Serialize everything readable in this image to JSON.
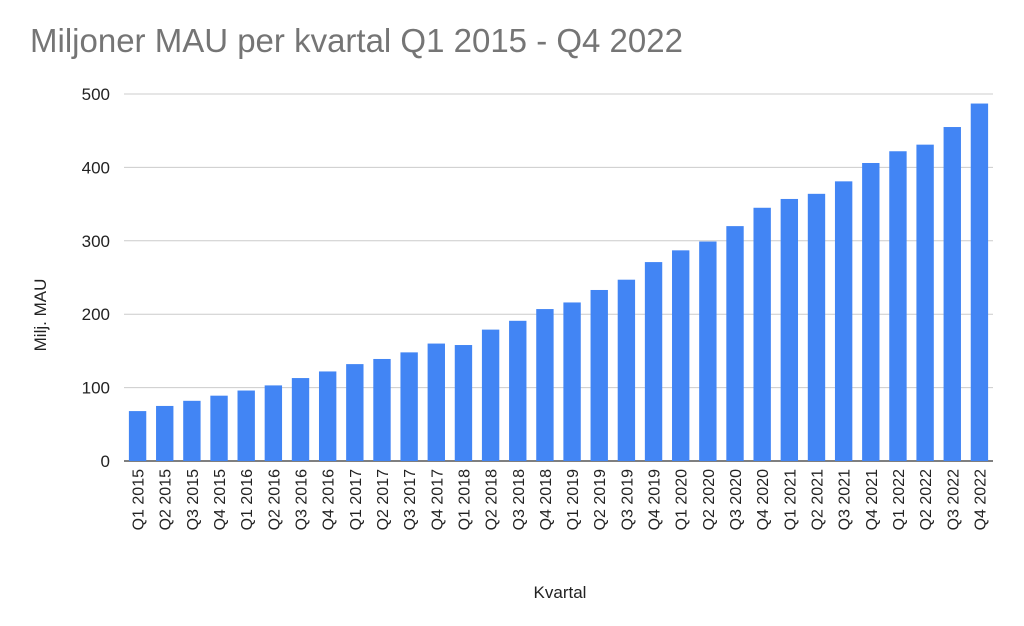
{
  "chart_data": {
    "type": "bar",
    "title": "Miljoner MAU per kvartal Q1 2015 - Q4 2022",
    "xlabel": "Kvartal",
    "ylabel": "Milj. MAU",
    "ylim": [
      0,
      500
    ],
    "yticks": [
      0,
      100,
      200,
      300,
      400,
      500
    ],
    "grid": true,
    "legend": "none",
    "bar_color": "#4285f4",
    "categories": [
      "Q1 2015",
      "Q2 2015",
      "Q3 2015",
      "Q4 2015",
      "Q1 2016",
      "Q2 2016",
      "Q3 2016",
      "Q4 2016",
      "Q1 2017",
      "Q2 2017",
      "Q3 2017",
      "Q4 2017",
      "Q1 2018",
      "Q2 2018",
      "Q3 2018",
      "Q4 2018",
      "Q1 2019",
      "Q2 2019",
      "Q3 2019",
      "Q4 2019",
      "Q1 2020",
      "Q2 2020",
      "Q3 2020",
      "Q4 2020",
      "Q1 2021",
      "Q2 2021",
      "Q3 2021",
      "Q4 2021",
      "Q1 2022",
      "Q2 2022",
      "Q3 2022",
      "Q4 2022"
    ],
    "values": [
      68,
      75,
      82,
      89,
      96,
      103,
      113,
      122,
      132,
      139,
      148,
      160,
      158,
      179,
      191,
      207,
      216,
      233,
      247,
      271,
      287,
      299,
      320,
      345,
      357,
      364,
      381,
      406,
      422,
      431,
      455,
      487
    ]
  }
}
